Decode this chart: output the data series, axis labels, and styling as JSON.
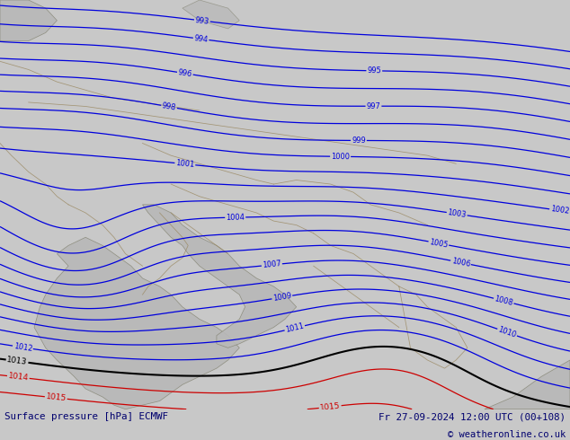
{
  "title_left": "Surface pressure [hPa] ECMWF",
  "title_right": "Fr 27-09-2024 12:00 UTC (00+108)",
  "copyright": "© weatheronline.co.uk",
  "bg_green": "#b0e070",
  "bg_gray": "#b8b8b8",
  "bar_bg": "#c8c8c8",
  "blue": "#0000dd",
  "black": "#000000",
  "red": "#cc0000",
  "border_color": "#9a8860",
  "text_dark": "#00006e",
  "figsize": [
    6.34,
    4.9
  ],
  "dpi": 100,
  "levels_blue": [
    993,
    994,
    995,
    996,
    997,
    998,
    999,
    1000,
    1001,
    1002,
    1003,
    1004,
    1005,
    1006,
    1007,
    1008,
    1009,
    1010,
    1011,
    1012
  ],
  "levels_black": [
    1013
  ],
  "levels_red": [
    1014,
    1015
  ]
}
